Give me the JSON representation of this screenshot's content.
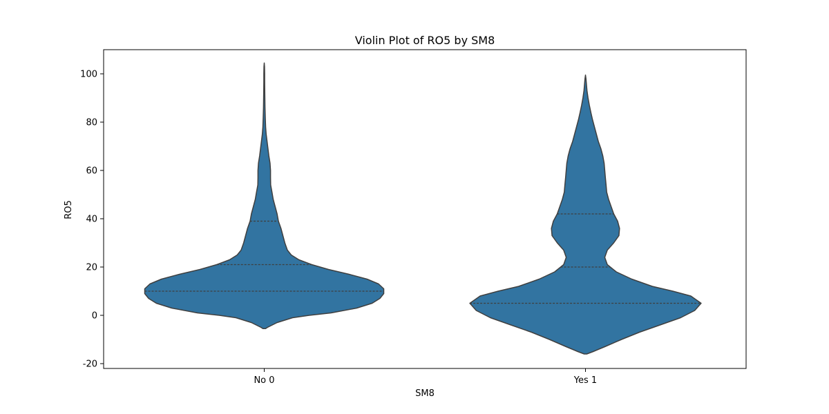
{
  "chart_data": {
    "type": "violin",
    "title": "Violin Plot of RO5 by SM8",
    "xlabel": "SM8",
    "ylabel": "RO5",
    "categories": [
      "No 0",
      "Yes 1"
    ],
    "ylim": [
      -22,
      110
    ],
    "yticks": [
      -20,
      0,
      20,
      40,
      60,
      80,
      100
    ],
    "grid": false,
    "fill_color": "#3274a1",
    "edge_color": "#3f3f3f",
    "violins": [
      {
        "category": "No 0",
        "quartiles": [
          10,
          21,
          39
        ],
        "profile": [
          [
            -5.5,
            0.01
          ],
          [
            -5,
            0.025
          ],
          [
            -3,
            0.1
          ],
          [
            -1,
            0.22
          ],
          [
            0,
            0.35
          ],
          [
            1,
            0.52
          ],
          [
            3,
            0.72
          ],
          [
            5,
            0.84
          ],
          [
            7,
            0.9
          ],
          [
            9,
            0.93
          ],
          [
            11,
            0.93
          ],
          [
            13,
            0.89
          ],
          [
            15,
            0.8
          ],
          [
            17,
            0.66
          ],
          [
            19,
            0.5
          ],
          [
            21,
            0.37
          ],
          [
            23,
            0.27
          ],
          [
            25,
            0.21
          ],
          [
            27,
            0.18
          ],
          [
            30,
            0.16
          ],
          [
            33,
            0.145
          ],
          [
            36,
            0.13
          ],
          [
            39,
            0.11
          ],
          [
            42,
            0.1
          ],
          [
            45,
            0.085
          ],
          [
            48,
            0.07
          ],
          [
            51,
            0.06
          ],
          [
            54,
            0.05
          ],
          [
            57,
            0.049
          ],
          [
            60,
            0.049
          ],
          [
            63,
            0.045
          ],
          [
            66,
            0.036
          ],
          [
            69,
            0.029
          ],
          [
            72,
            0.022
          ],
          [
            75,
            0.015
          ],
          [
            78,
            0.011
          ],
          [
            82,
            0.008
          ],
          [
            86,
            0.006
          ],
          [
            90,
            0.005
          ],
          [
            94,
            0.004
          ],
          [
            97,
            0.003
          ],
          [
            100,
            0.003
          ],
          [
            103,
            0.002
          ],
          [
            104.5,
            0.0
          ]
        ]
      },
      {
        "category": "Yes 1",
        "quartiles": [
          5,
          20,
          42
        ],
        "profile": [
          [
            -16,
            0.01
          ],
          [
            -15,
            0.06
          ],
          [
            -13,
            0.15
          ],
          [
            -10,
            0.28
          ],
          [
            -7,
            0.42
          ],
          [
            -4,
            0.58
          ],
          [
            -1,
            0.74
          ],
          [
            2,
            0.85
          ],
          [
            5,
            0.9
          ],
          [
            8,
            0.82
          ],
          [
            10,
            0.68
          ],
          [
            12,
            0.52
          ],
          [
            15,
            0.36
          ],
          [
            18,
            0.24
          ],
          [
            21,
            0.17
          ],
          [
            24,
            0.15
          ],
          [
            27,
            0.17
          ],
          [
            30,
            0.22
          ],
          [
            33,
            0.26
          ],
          [
            36,
            0.265
          ],
          [
            39,
            0.25
          ],
          [
            42,
            0.22
          ],
          [
            45,
            0.2
          ],
          [
            48,
            0.18
          ],
          [
            51,
            0.165
          ],
          [
            54,
            0.16
          ],
          [
            57,
            0.155
          ],
          [
            60,
            0.15
          ],
          [
            63,
            0.145
          ],
          [
            66,
            0.135
          ],
          [
            69,
            0.12
          ],
          [
            72,
            0.1
          ],
          [
            75,
            0.085
          ],
          [
            78,
            0.07
          ],
          [
            81,
            0.055
          ],
          [
            84,
            0.042
          ],
          [
            87,
            0.03
          ],
          [
            90,
            0.02
          ],
          [
            93,
            0.012
          ],
          [
            96,
            0.007
          ],
          [
            98,
            0.004
          ],
          [
            99.5,
            0.0
          ]
        ]
      }
    ]
  }
}
